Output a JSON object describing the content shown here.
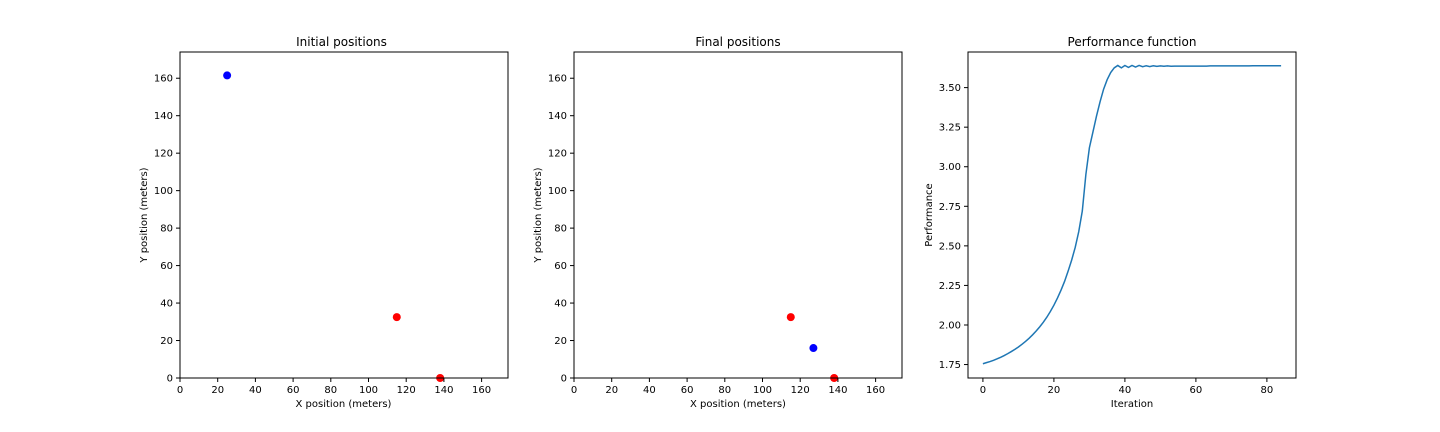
{
  "chart_data": [
    {
      "type": "scatter",
      "title": "Initial positions",
      "xlabel": "X position (meters)",
      "ylabel": "Y position (meters)",
      "xlim": [
        0,
        174
      ],
      "ylim": [
        0,
        174
      ],
      "xticks": [
        0,
        20,
        40,
        60,
        80,
        100,
        120,
        140,
        160
      ],
      "yticks": [
        0,
        20,
        40,
        60,
        80,
        100,
        120,
        140,
        160
      ],
      "grid": false,
      "series": [
        {
          "color": "#0000ff",
          "points": [
            [
              25,
              161.5
            ]
          ]
        },
        {
          "color": "#ff0000",
          "points": [
            [
              115,
              32.5
            ],
            [
              138,
              0
            ]
          ]
        }
      ]
    },
    {
      "type": "scatter",
      "title": "Final positions",
      "xlabel": "X position (meters)",
      "ylabel": "Y position (meters)",
      "xlim": [
        0,
        174
      ],
      "ylim": [
        0,
        174
      ],
      "xticks": [
        0,
        20,
        40,
        60,
        80,
        100,
        120,
        140,
        160
      ],
      "yticks": [
        0,
        20,
        40,
        60,
        80,
        100,
        120,
        140,
        160
      ],
      "grid": false,
      "series": [
        {
          "color": "#0000ff",
          "points": [
            [
              127,
              16
            ]
          ]
        },
        {
          "color": "#ff0000",
          "points": [
            [
              115,
              32.5
            ],
            [
              138,
              0
            ]
          ]
        }
      ]
    },
    {
      "type": "line",
      "title": "Performance function",
      "xlabel": "Iteration",
      "ylabel": "Performance",
      "xlim": [
        -4.2,
        88.2
      ],
      "ylim": [
        1.665,
        3.725
      ],
      "xticks": [
        0,
        20,
        40,
        60,
        80
      ],
      "yticks": [
        1.75,
        2.0,
        2.25,
        2.5,
        2.75,
        3.0,
        3.25,
        3.5
      ],
      "ytick_labels": [
        "1.75",
        "2.00",
        "2.25",
        "2.50",
        "2.75",
        "3.00",
        "3.25",
        "3.50"
      ],
      "grid": false,
      "series": [
        {
          "color": "#1f77b4",
          "x": [
            0,
            1,
            2,
            3,
            4,
            5,
            6,
            7,
            8,
            9,
            10,
            11,
            12,
            13,
            14,
            15,
            16,
            17,
            18,
            19,
            20,
            21,
            22,
            23,
            24,
            25,
            26,
            27,
            28,
            29,
            30,
            31,
            32,
            33,
            34,
            35,
            36,
            37,
            38,
            39,
            40,
            41,
            42,
            43,
            44,
            45,
            46,
            47,
            48,
            49,
            50,
            51,
            52,
            53,
            54,
            55,
            56,
            57,
            58,
            59,
            60,
            61,
            62,
            63,
            64,
            65,
            66,
            67,
            68,
            69,
            70,
            71,
            72,
            73,
            74,
            75,
            76,
            77,
            78,
            79,
            80,
            81,
            82,
            83,
            84
          ],
          "values": [
            1.755,
            1.762,
            1.769,
            1.777,
            1.786,
            1.796,
            1.807,
            1.819,
            1.832,
            1.846,
            1.861,
            1.878,
            1.896,
            1.916,
            1.938,
            1.962,
            1.988,
            2.017,
            2.049,
            2.085,
            2.125,
            2.17,
            2.22,
            2.275,
            2.34,
            2.41,
            2.49,
            2.59,
            2.72,
            2.95,
            3.12,
            3.22,
            3.32,
            3.41,
            3.49,
            3.55,
            3.595,
            3.625,
            3.64,
            3.625,
            3.64,
            3.628,
            3.64,
            3.63,
            3.64,
            3.632,
            3.638,
            3.633,
            3.638,
            3.634,
            3.637,
            3.635,
            3.637,
            3.635,
            3.636,
            3.636,
            3.636,
            3.636,
            3.636,
            3.636,
            3.636,
            3.636,
            3.636,
            3.636,
            3.637,
            3.637,
            3.637,
            3.637,
            3.637,
            3.637,
            3.637,
            3.637,
            3.637,
            3.637,
            3.637,
            3.637,
            3.638,
            3.638,
            3.638,
            3.638,
            3.638,
            3.638,
            3.638,
            3.638,
            3.638
          ]
        }
      ]
    }
  ]
}
